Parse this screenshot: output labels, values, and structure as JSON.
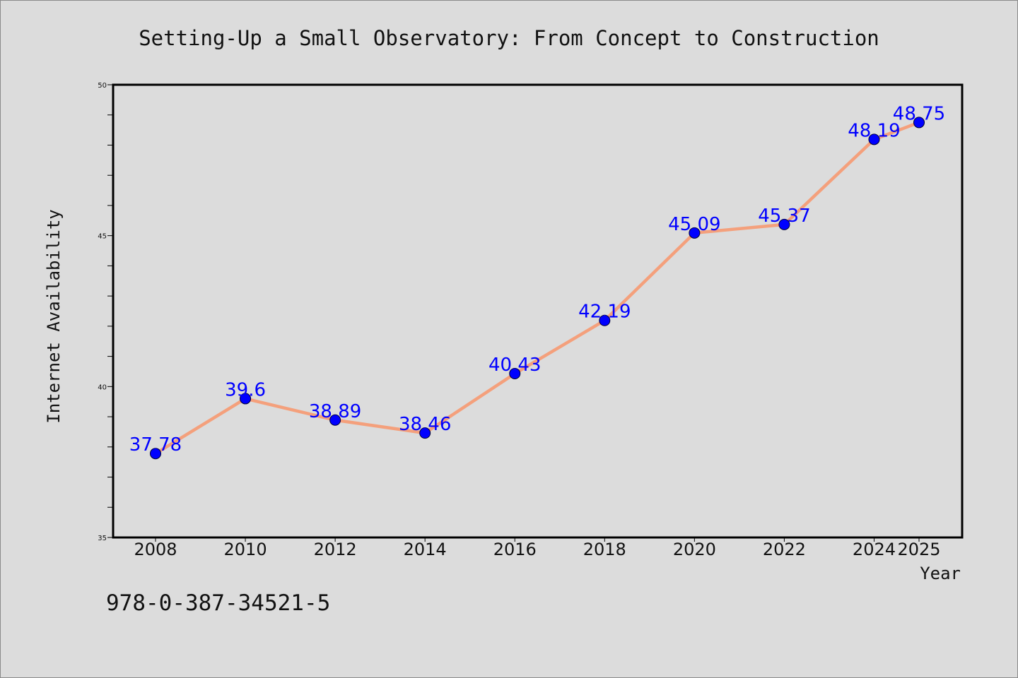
{
  "chart_data": {
    "type": "line",
    "title": "Setting-Up a Small Observatory: From Concept to Construction",
    "xlabel": "Year",
    "ylabel": "Internet Availability",
    "categories": [
      "2008",
      "2010",
      "2012",
      "2014",
      "2016",
      "2018",
      "2020",
      "2022",
      "2024",
      "2025"
    ],
    "values": [
      37.78,
      39.6,
      38.89,
      38.46,
      40.43,
      42.19,
      45.09,
      45.37,
      48.19,
      48.75
    ],
    "data_labels": [
      "37.78",
      "39.6",
      "38.89",
      "38.46",
      "40.43",
      "42.19",
      "45.09",
      "45.37",
      "48.19",
      "48.75"
    ],
    "ylim": [
      35,
      50
    ],
    "yticks": [
      "35",
      "40",
      "45",
      "50"
    ],
    "grid": false,
    "line_color": "#f4a07c",
    "marker_color": "#0000ff",
    "label_color": "#0000ff"
  },
  "footer": {
    "isbn": "978-0-387-34521-5"
  }
}
